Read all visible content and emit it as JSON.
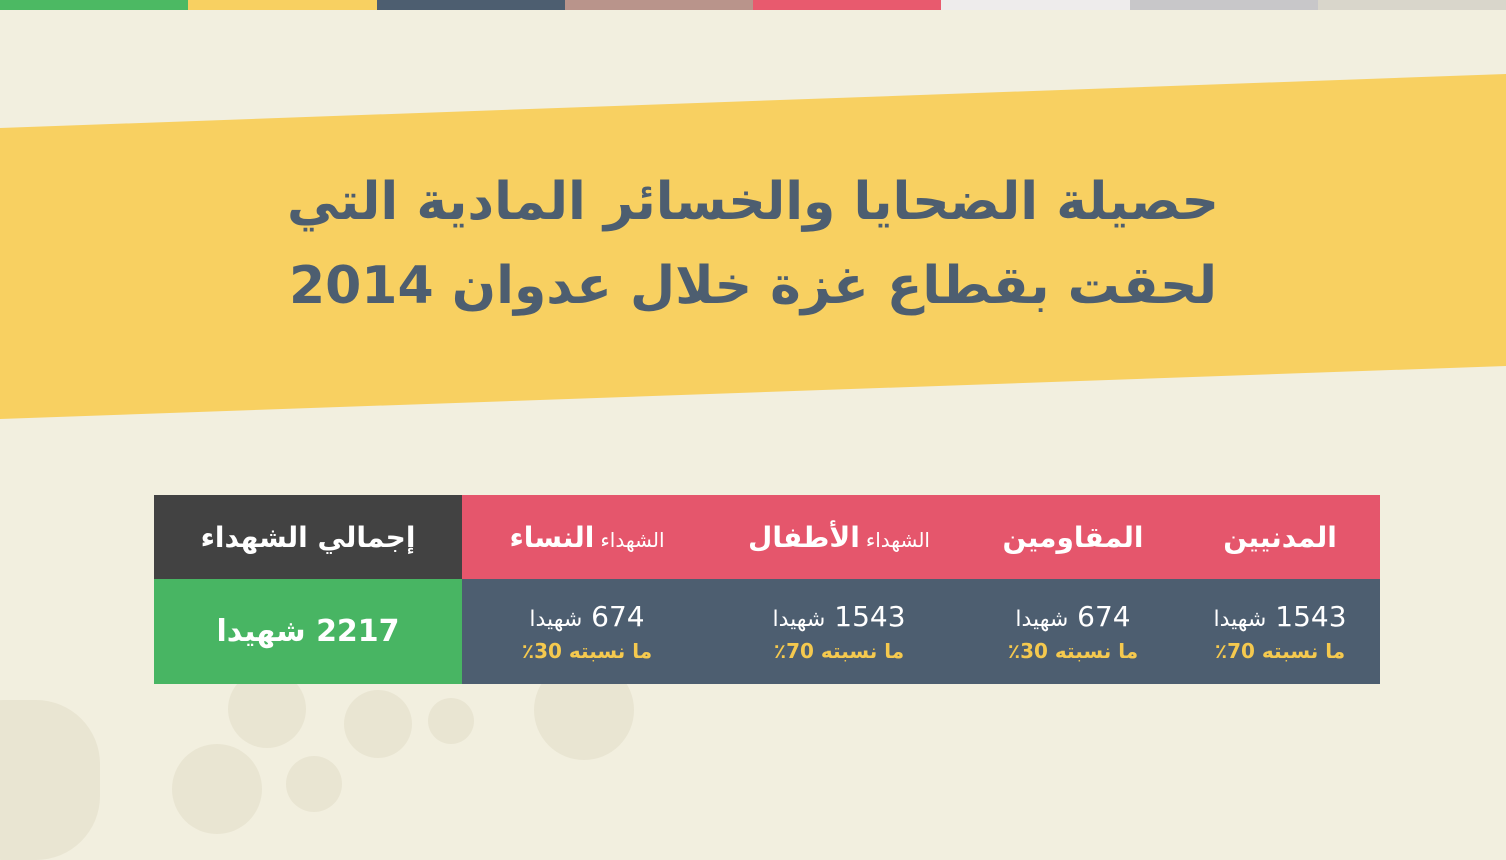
{
  "colors": {
    "stripe": [
      "#4cb963",
      "#f8d061",
      "#4d5e70",
      "#b9948b",
      "#e85a6e",
      "#eeecec",
      "#c8c7c9",
      "#d9d6cb"
    ],
    "band": "#f8d061",
    "header": "#e5566c",
    "total_header": "#424242",
    "body": "#4d5e70",
    "total_body": "#48b563",
    "percent": "#f5c94e"
  },
  "title": {
    "line1": "حصيلة الضحايا والخسائر المادية التي",
    "line2": "لحقت بقطاع غزة خلال عدوان 2014"
  },
  "table": {
    "total": {
      "header": "إجمالي الشهداء",
      "value": "2217 شهيدا"
    },
    "columns": [
      {
        "prefix": "الشهداء",
        "header": "النساء",
        "count": "674",
        "unit": "شهيدا",
        "percent": "ما نسبته 30٪"
      },
      {
        "prefix": "الشهداء",
        "header": "الأطفال",
        "count": "1543",
        "unit": "شهيدا",
        "percent": "ما نسبته 70٪"
      },
      {
        "prefix": "",
        "header": "المقاومين",
        "count": "674",
        "unit": "شهيدا",
        "percent": "ما نسبته 30٪"
      },
      {
        "prefix": "",
        "header": "المدنيين",
        "count": "1543",
        "unit": "شهيدا",
        "percent": "ما نسبته 70٪"
      }
    ]
  }
}
